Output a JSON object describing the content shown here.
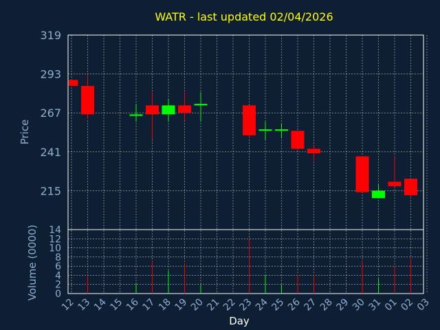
{
  "chart_data": {
    "type": "candlestick",
    "title": "WATR - last updated 02/04/2026",
    "xlabel": "Day",
    "price_panel": {
      "ylabel": "Price",
      "ylim": [
        189,
        319
      ],
      "yticks": [
        215,
        241,
        267,
        293,
        319
      ],
      "grid": true
    },
    "volume_panel": {
      "ylabel": "Volume (0000)",
      "ylim": [
        0,
        14
      ],
      "yticks": [
        0,
        2,
        4,
        6,
        8,
        10,
        12,
        14
      ],
      "grid": true
    },
    "x_ticks": [
      "12",
      "13",
      "14",
      "15",
      "16",
      "17",
      "18",
      "19",
      "20",
      "21",
      "22",
      "23",
      "24",
      "25",
      "26",
      "27",
      "28",
      "29",
      "30",
      "31",
      "01",
      "02",
      "03"
    ],
    "candles": [
      {
        "day": "12",
        "open": 289,
        "high": 289,
        "low": 285,
        "close": 285,
        "volume": 0
      },
      {
        "day": "13",
        "open": 285,
        "high": 292,
        "low": 263,
        "close": 266,
        "volume": 4.0
      },
      {
        "day": "16",
        "open": 265,
        "high": 273,
        "low": 261,
        "close": 266,
        "volume": 2.3
      },
      {
        "day": "17",
        "open": 272,
        "high": 281,
        "low": 249,
        "close": 266,
        "volume": 7.2
      },
      {
        "day": "18",
        "open": 266,
        "high": 276,
        "low": 261,
        "close": 272,
        "volume": 5.0
      },
      {
        "day": "19",
        "open": 272,
        "high": 281,
        "low": 262,
        "close": 267,
        "volume": 6.6
      },
      {
        "day": "20",
        "open": 272,
        "high": 281,
        "low": 261,
        "close": 273,
        "volume": 2.0
      },
      {
        "day": "23",
        "open": 272,
        "high": 272,
        "low": 250,
        "close": 252,
        "volume": 12.0
      },
      {
        "day": "24",
        "open": 255,
        "high": 261,
        "low": 249,
        "close": 256,
        "volume": 4.0
      },
      {
        "day": "25",
        "open": 255,
        "high": 260,
        "low": 250,
        "close": 256,
        "volume": 2.0
      },
      {
        "day": "26",
        "open": 255,
        "high": 255,
        "low": 242,
        "close": 243,
        "volume": 4.2
      },
      {
        "day": "27",
        "open": 243,
        "high": 245,
        "low": 235,
        "close": 240,
        "volume": 4.2
      },
      {
        "day": "30",
        "open": 238,
        "high": 238,
        "low": 214,
        "close": 214,
        "volume": 7.2
      },
      {
        "day": "31",
        "open": 210,
        "high": 219,
        "low": 210,
        "close": 215,
        "volume": 3.3
      },
      {
        "day": "01",
        "open": 221,
        "high": 238,
        "low": 218,
        "close": 218,
        "volume": 6.0
      },
      {
        "day": "02",
        "open": 223,
        "high": 223,
        "low": 210,
        "close": 212,
        "volume": 7.8
      }
    ],
    "colors": {
      "up": "#00ff00",
      "down": "#ff0000",
      "background": "#0f1f33",
      "axis": "#ffffff",
      "grid": "#c0c0c0",
      "title": "#ffff00",
      "label": "#8faed0"
    }
  }
}
